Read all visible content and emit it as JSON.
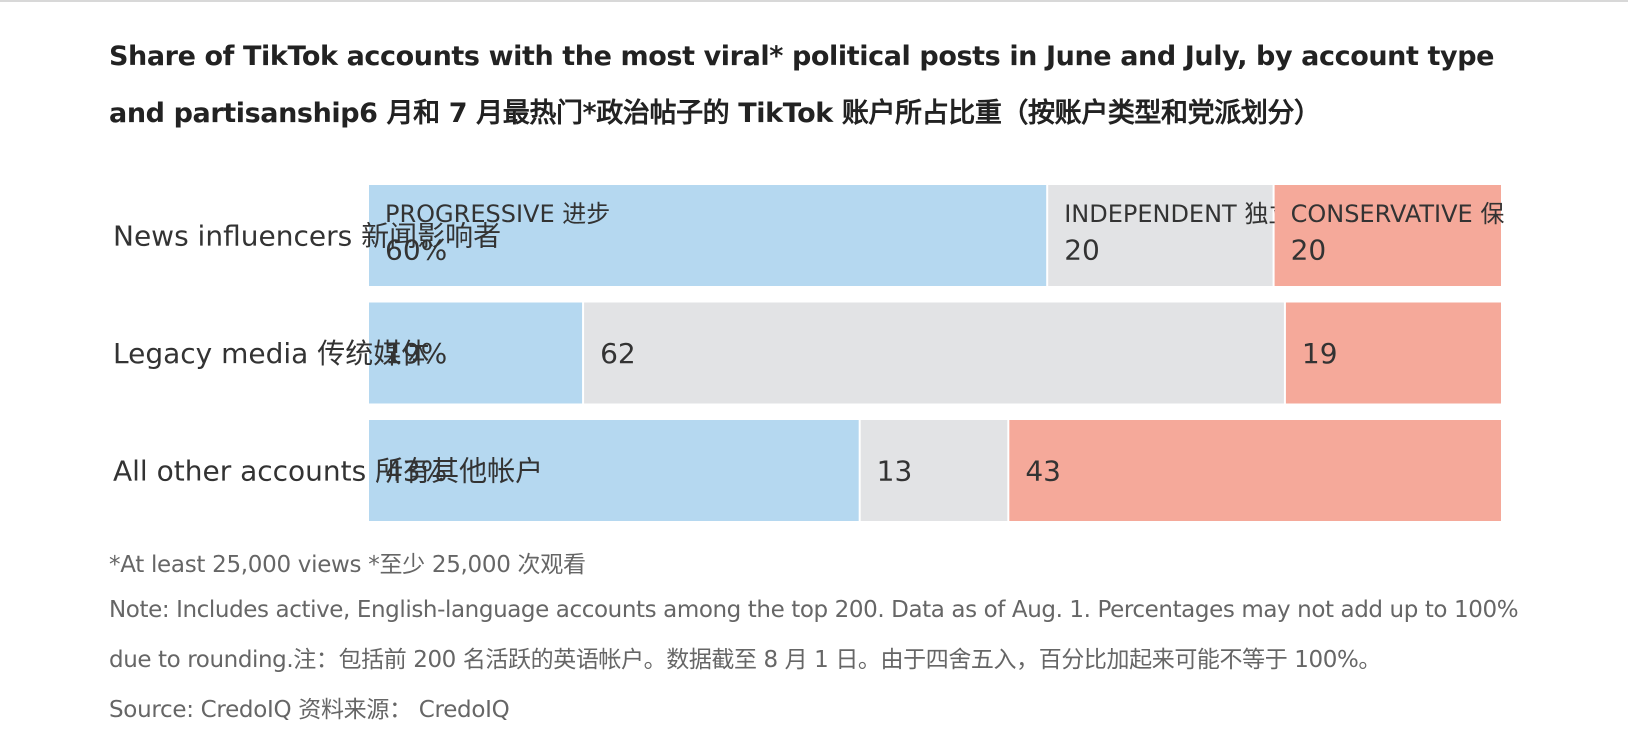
{
  "title": "Share of TikTok accounts with the most viral* political posts in June and July, by account type and partisanship6 月和 7 月最热门*政治帖子的 TikTok 账户所占比重（按账户类型和党派划分）",
  "colors": {
    "progressive": "#b5d8f0",
    "independent": "#e2e3e5",
    "conservative": "#f5a99a",
    "text": "#333333",
    "note_text": "#666666"
  },
  "chart_data": {
    "type": "bar",
    "orientation": "horizontal",
    "stacked": true,
    "title": "Share of TikTok accounts with the most viral* political posts in June and July, by account type and partisanship",
    "xlim": [
      0,
      100
    ],
    "categories": [
      "News influencers 新闻影响者",
      "Legacy media 传统媒体",
      "All other accounts 所有其他帐户"
    ],
    "series": [
      {
        "name": "PROGRESSIVE 进步",
        "values": [
          60,
          19,
          43
        ],
        "labels": [
          "60%",
          "19%",
          "43%"
        ]
      },
      {
        "name": "INDEPENDENT 独立的",
        "values": [
          20,
          62,
          13
        ],
        "labels": [
          "20",
          "62",
          "13"
        ]
      },
      {
        "name": "CONSERVATIVE 保守",
        "values": [
          20,
          19,
          43
        ],
        "labels": [
          "20",
          "19",
          "43"
        ]
      }
    ],
    "legend_display": [
      "PROGRESSIVE 进步",
      "INDEPENDENT 独立的",
      "CONSERVATIVE 保"
    ]
  },
  "notes": {
    "footnote": "*At least 25,000 views *至少 25,000 次观看",
    "note": "Note: Includes active, English-language accounts among the top 200. Data as of Aug. 1. Percentages may not add up to 100% due to rounding.注：包括前 200 名活跃的英语帐户。数据截至 8 月 1 日。由于四舍五入，百分比加起来可能不等于 100%。",
    "source": "Source: CredoIQ 资料来源： CredoIQ"
  }
}
